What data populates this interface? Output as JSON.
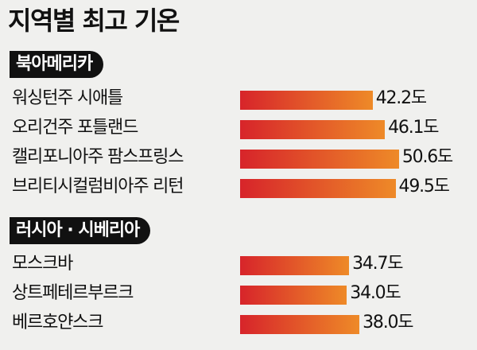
{
  "title": "지역별 최고 기온",
  "unit": "도",
  "chart_data": {
    "type": "bar",
    "orientation": "horizontal",
    "title": "지역별 최고 기온",
    "groups": [
      {
        "name": "북아메리카",
        "categories": [
          "워싱턴주 시애틀",
          "오리건주 포틀랜드",
          "캘리포니아주 팜스프링스",
          "브리티시컬럼비아주 리턴"
        ],
        "values": [
          42.2,
          46.1,
          50.6,
          49.5
        ],
        "labels": [
          "42.2도",
          "46.1도",
          "50.6도",
          "49.5도"
        ]
      },
      {
        "name": "러시아 · 시베리아",
        "categories": [
          "모스크바",
          "상트페테르부르크",
          "베르호얀스크"
        ],
        "values": [
          34.7,
          34.0,
          38.0
        ],
        "labels": [
          "34.7도",
          "34.0도",
          "38.0도"
        ]
      }
    ],
    "bar_gradient": [
      "#d7242a",
      "#ee8a28"
    ],
    "grid": false,
    "legend": "none"
  }
}
